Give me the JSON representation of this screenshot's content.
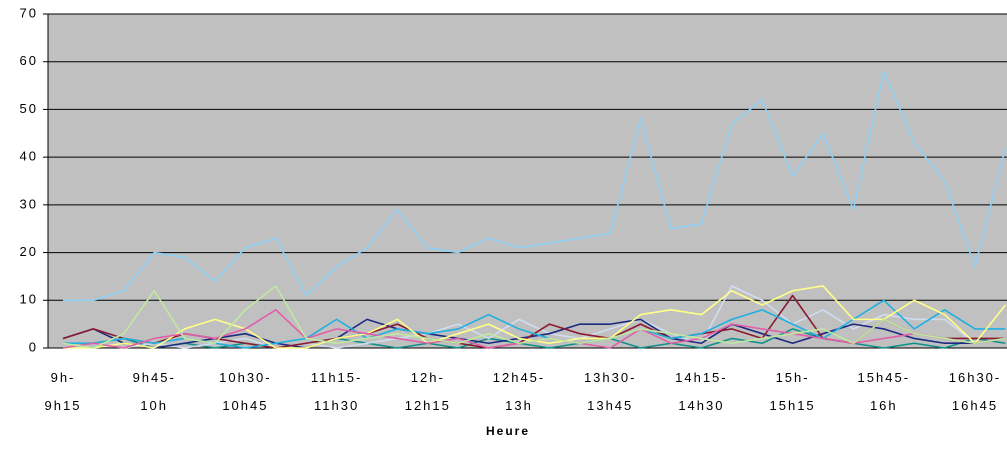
{
  "chart_data": {
    "type": "line",
    "x_label": "Heure",
    "categories": [
      "9h-9h15",
      null,
      null,
      "9h45-10h",
      null,
      null,
      "10h30-10h45",
      null,
      null,
      "11h15-11h30",
      null,
      null,
      "12h-12h15",
      null,
      null,
      "12h45-13h",
      null,
      null,
      "13h30-13h45",
      null,
      null,
      "14h15-14h30",
      null,
      null,
      "15h-15h15",
      null,
      null,
      "15h45-16h",
      null,
      null,
      "16h30-16h45",
      null
    ],
    "series": [
      {
        "color": "#8fd0f5",
        "values": [
          10,
          10,
          12,
          20,
          19,
          14,
          21,
          23,
          11,
          17,
          21,
          29,
          21,
          20,
          23,
          21,
          22,
          23,
          24,
          48,
          25,
          26,
          47,
          52,
          36,
          45,
          29,
          58,
          43,
          35,
          17,
          42
        ]
      },
      {
        "color": "#c0e8a0",
        "values": [
          1,
          0,
          3,
          12,
          2,
          1,
          8,
          13,
          2,
          1,
          2,
          3,
          2,
          1,
          3,
          1,
          2,
          1,
          2,
          4,
          3,
          2,
          1,
          2,
          3,
          4,
          1,
          6,
          3,
          2,
          1,
          2
        ]
      },
      {
        "color": "#e060a8",
        "values": [
          0,
          1,
          0,
          2,
          3,
          2,
          4,
          8,
          2,
          4,
          3,
          2,
          1,
          2,
          0,
          1,
          2,
          1,
          0,
          4,
          1,
          2,
          5,
          4,
          3,
          2,
          1,
          2,
          3,
          2,
          1,
          2
        ]
      },
      {
        "color": "#ffff88",
        "values": [
          0,
          0,
          1,
          0,
          4,
          6,
          4,
          0,
          0,
          2,
          3,
          6,
          1,
          3,
          5,
          2,
          1,
          2,
          2,
          7,
          8,
          7,
          12,
          9,
          12,
          13,
          6,
          6,
          10,
          7,
          1,
          9
        ]
      },
      {
        "color": "#20b0e0",
        "values": [
          1,
          1,
          2,
          1,
          2,
          1,
          0,
          1,
          2,
          6,
          2,
          4,
          3,
          4,
          7,
          4,
          2,
          1,
          2,
          4,
          2,
          3,
          6,
          8,
          5,
          2,
          6,
          10,
          4,
          8,
          4,
          4
        ]
      },
      {
        "color": "#8b1a30",
        "values": [
          2,
          4,
          2,
          1,
          3,
          2,
          1,
          0,
          1,
          2,
          3,
          5,
          2,
          1,
          0,
          1,
          5,
          3,
          2,
          5,
          2,
          3,
          4,
          2,
          11,
          2,
          1,
          6,
          3,
          2,
          2,
          2
        ]
      },
      {
        "color": "#1c2a80",
        "values": [
          2,
          4,
          1,
          0,
          1,
          2,
          3,
          1,
          0,
          2,
          6,
          4,
          3,
          2,
          1,
          2,
          3,
          5,
          5,
          6,
          2,
          1,
          5,
          3,
          1,
          3,
          5,
          4,
          2,
          1,
          1,
          2
        ]
      },
      {
        "color": "#d0dcf0",
        "values": [
          0,
          1,
          0,
          1,
          0,
          1,
          2,
          0,
          1,
          0,
          1,
          2,
          3,
          5,
          2,
          6,
          3,
          2,
          4,
          6,
          3,
          1,
          13,
          10,
          5,
          8,
          4,
          7,
          6,
          6,
          1,
          2
        ]
      },
      {
        "color": "#10908a",
        "values": [
          0,
          1,
          2,
          0,
          1,
          0,
          1,
          0,
          1,
          2,
          1,
          0,
          1,
          0,
          2,
          1,
          0,
          1,
          2,
          0,
          1,
          0,
          2,
          1,
          4,
          2,
          1,
          0,
          1,
          0,
          2,
          1
        ]
      }
    ],
    "ylim": [
      0,
      70
    ],
    "yticks": [
      0,
      10,
      20,
      30,
      40,
      50,
      60,
      70
    ],
    "grid": true,
    "background": "#c0c0c0"
  }
}
